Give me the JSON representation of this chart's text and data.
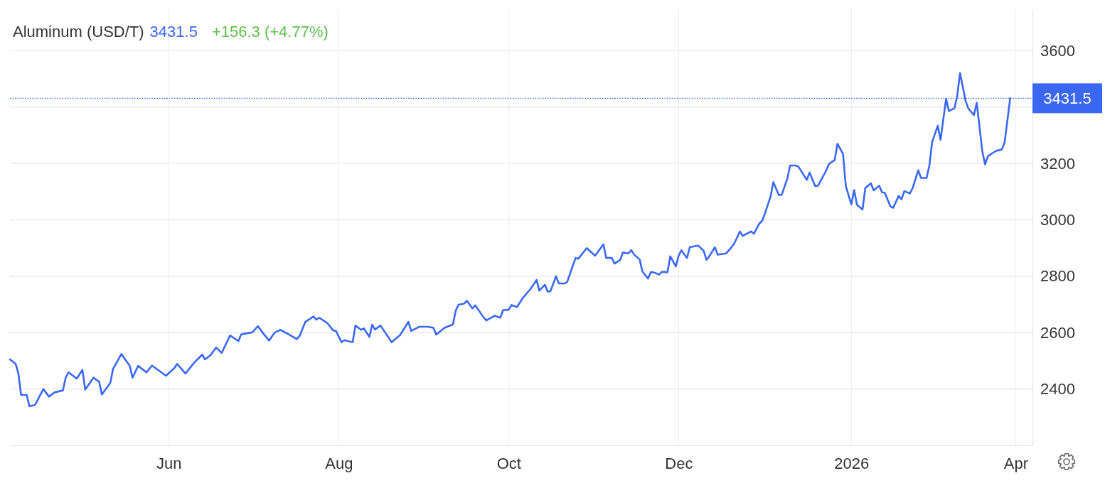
{
  "chart_data": {
    "type": "line",
    "title": "Aluminum (USD/T)",
    "annotations": [
      "3431.5",
      "+156.3 (+4.77%)"
    ],
    "x": [
      "2025-04-05",
      "2025-04-07",
      "2025-04-08",
      "2025-04-09",
      "2025-04-11",
      "2025-04-12",
      "2025-04-14",
      "2025-04-17",
      "2025-04-19",
      "2025-04-21",
      "2025-04-24",
      "2025-04-25",
      "2025-04-26",
      "2025-04-29",
      "2025-05-01",
      "2025-05-02",
      "2025-05-05",
      "2025-05-07",
      "2025-05-08",
      "2025-05-11",
      "2025-05-12",
      "2025-05-15",
      "2025-05-18",
      "2025-05-19",
      "2025-05-21",
      "2025-05-24",
      "2025-05-26",
      "2025-05-31",
      "2025-06-03",
      "2025-06-04",
      "2025-06-07",
      "2025-06-10",
      "2025-06-13",
      "2025-06-14",
      "2025-06-16",
      "2025-06-18",
      "2025-06-20",
      "2025-06-23",
      "2025-06-26",
      "2025-06-27",
      "2025-07-01",
      "2025-07-03",
      "2025-07-05",
      "2025-07-07",
      "2025-07-09",
      "2025-07-11",
      "2025-07-13",
      "2025-07-17",
      "2025-07-18",
      "2025-07-20",
      "2025-07-23",
      "2025-07-24",
      "2025-07-25",
      "2025-07-28",
      "2025-07-30",
      "2025-07-31",
      "2025-08-02",
      "2025-08-03",
      "2025-08-06",
      "2025-08-07",
      "2025-08-09",
      "2025-08-10",
      "2025-08-12",
      "2025-08-13",
      "2025-08-14",
      "2025-08-16",
      "2025-08-20",
      "2025-08-23",
      "2025-08-26",
      "2025-08-27",
      "2025-08-30",
      "2025-09-02",
      "2025-09-04",
      "2025-09-05",
      "2025-09-08",
      "2025-09-11",
      "2025-09-12",
      "2025-09-13",
      "2025-09-15",
      "2025-09-16",
      "2025-09-18",
      "2025-09-19",
      "2025-09-22",
      "2025-09-23",
      "2025-09-26",
      "2025-09-28",
      "2025-09-29",
      "2025-10-01",
      "2025-10-02",
      "2025-10-04",
      "2025-10-06",
      "2025-10-09",
      "2025-10-11",
      "2025-10-12",
      "2025-10-14",
      "2025-10-15",
      "2025-10-16",
      "2025-10-18",
      "2025-10-19",
      "2025-10-21",
      "2025-10-22",
      "2025-10-23",
      "2025-10-25",
      "2025-10-26",
      "2025-10-29",
      "2025-11-01",
      "2025-11-04",
      "2025-11-05",
      "2025-11-07",
      "2025-11-08",
      "2025-11-10",
      "2025-11-11",
      "2025-11-13",
      "2025-11-14",
      "2025-11-15",
      "2025-11-17",
      "2025-11-18",
      "2025-11-20",
      "2025-11-21",
      "2025-11-22",
      "2025-11-24",
      "2025-11-25",
      "2025-11-27",
      "2025-11-28",
      "2025-11-30",
      "2025-12-01",
      "2025-12-02",
      "2025-12-04",
      "2025-12-05",
      "2025-12-08",
      "2025-12-10",
      "2025-12-11",
      "2025-12-12",
      "2025-12-14",
      "2025-12-15",
      "2025-12-18",
      "2025-12-20",
      "2025-12-21",
      "2025-12-23",
      "2025-12-24",
      "2025-12-27",
      "2025-12-28",
      "2025-12-30",
      "2025-12-31",
      "2026-01-01",
      "2026-01-03",
      "2026-01-04",
      "2026-01-06",
      "2026-01-07",
      "2026-01-09",
      "2026-01-10",
      "2026-01-12",
      "2026-01-13",
      "2026-01-16",
      "2026-01-17",
      "2026-01-19",
      "2026-01-20",
      "2026-01-23",
      "2026-01-24",
      "2026-01-26",
      "2026-01-27",
      "2026-01-29",
      "2026-01-30",
      "2026-02-01",
      "2026-02-02",
      "2026-02-03",
      "2026-02-05",
      "2026-02-06",
      "2026-02-08",
      "2026-02-09",
      "2026-02-11",
      "2026-02-12",
      "2026-02-13",
      "2026-02-15",
      "2026-02-16",
      "2026-02-18",
      "2026-02-19",
      "2026-02-20",
      "2026-02-22",
      "2026-02-23",
      "2026-02-25",
      "2026-02-26",
      "2026-02-28",
      "2026-03-01",
      "2026-03-02",
      "2026-03-04",
      "2026-03-05",
      "2026-03-07",
      "2026-03-08",
      "2026-03-10",
      "2026-03-11",
      "2026-03-12",
      "2026-03-14",
      "2026-03-15",
      "2026-03-17",
      "2026-03-18",
      "2026-03-20",
      "2026-03-21",
      "2026-03-22",
      "2026-03-24",
      "2026-03-25",
      "2026-03-27",
      "2026-03-28",
      "2026-03-30"
    ],
    "values": [
      2505,
      2490,
      2457,
      2379,
      2379,
      2339,
      2343,
      2400,
      2373,
      2388,
      2395,
      2440,
      2459,
      2437,
      2468,
      2398,
      2440,
      2426,
      2381,
      2421,
      2471,
      2524,
      2482,
      2440,
      2482,
      2459,
      2483,
      2447,
      2474,
      2489,
      2455,
      2492,
      2522,
      2505,
      2520,
      2547,
      2528,
      2590,
      2570,
      2594,
      2601,
      2623,
      2596,
      2572,
      2600,
      2610,
      2600,
      2577,
      2589,
      2638,
      2657,
      2646,
      2653,
      2633,
      2608,
      2606,
      2566,
      2573,
      2566,
      2625,
      2610,
      2615,
      2585,
      2628,
      2611,
      2625,
      2566,
      2591,
      2638,
      2606,
      2621,
      2621,
      2617,
      2593,
      2617,
      2629,
      2678,
      2699,
      2703,
      2713,
      2686,
      2697,
      2654,
      2643,
      2660,
      2653,
      2680,
      2681,
      2698,
      2691,
      2722,
      2757,
      2787,
      2749,
      2770,
      2745,
      2747,
      2800,
      2775,
      2774,
      2780,
      2808,
      2865,
      2862,
      2900,
      2873,
      2913,
      2865,
      2865,
      2845,
      2858,
      2884,
      2881,
      2893,
      2877,
      2860,
      2817,
      2792,
      2814,
      2814,
      2806,
      2816,
      2814,
      2871,
      2835,
      2873,
      2892,
      2865,
      2903,
      2909,
      2890,
      2858,
      2871,
      2903,
      2877,
      2881,
      2903,
      2917,
      2959,
      2943,
      2959,
      2951,
      2987,
      2997,
      3023,
      3083,
      3134,
      3088,
      3089,
      3146,
      3193,
      3193,
      3189,
      3142,
      3168,
      3120,
      3121,
      3176,
      3199,
      3212,
      3270,
      3234,
      3120,
      3055,
      3106,
      3054,
      3037,
      3113,
      3130,
      3105,
      3121,
      3098,
      3096,
      3048,
      3043,
      3085,
      3073,
      3102,
      3094,
      3113,
      3176,
      3149,
      3149,
      3193,
      3277,
      3334,
      3284,
      3430,
      3386,
      3396,
      3441,
      3521,
      3422,
      3395,
      3372,
      3416,
      3243,
      3197,
      3226,
      3239,
      3245,
      3250,
      3275,
      3431.5
    ],
    "color": "#3b68f2",
    "xlim": [
      "2025-04-05",
      "2026-04-07"
    ],
    "xticks": [
      {
        "value": "2025-06-01",
        "label": "Jun"
      },
      {
        "value": "2025-08-01",
        "label": "Aug"
      },
      {
        "value": "2025-10-01",
        "label": "Oct"
      },
      {
        "value": "2025-12-01",
        "label": "Dec"
      },
      {
        "value": "2026-02-01",
        "label": "2026"
      },
      {
        "value": "2026-04-01",
        "label": "Apr"
      }
    ],
    "ylim": [
      2200,
      3750
    ],
    "yticks": [
      2400,
      2600,
      2800,
      3000,
      3200,
      {
        "value": 3400,
        "label": null
      },
      3600
    ],
    "grid": true,
    "ref_lines": [
      {
        "axis": "y",
        "value": 3431.5,
        "label": "3431.5",
        "color": "#3b68f2",
        "line_style": "dotted"
      }
    ]
  }
}
